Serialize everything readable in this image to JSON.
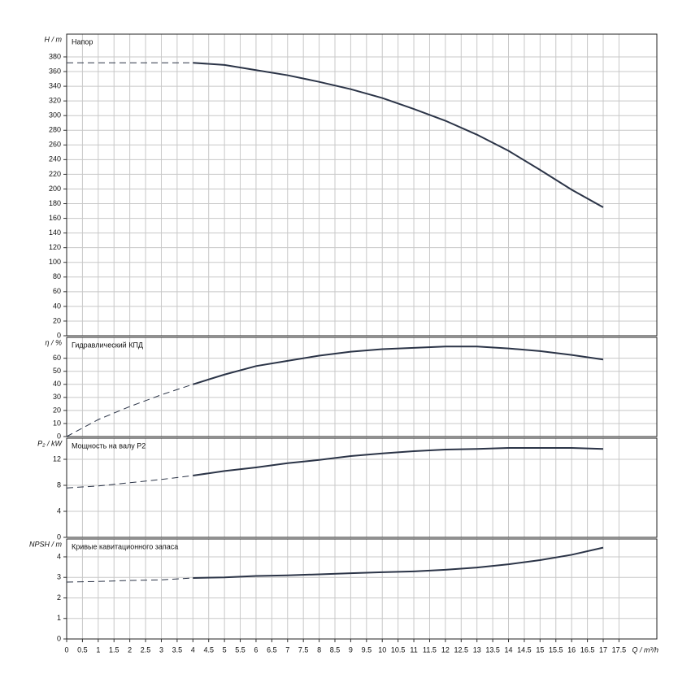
{
  "chart_data": [
    {
      "type": "line",
      "title": "Напор",
      "ylabel": "H / m",
      "grid": true,
      "xlim": [
        0,
        18.7
      ],
      "ylim": [
        0,
        411
      ],
      "yticks": [
        0,
        20,
        40,
        60,
        80,
        100,
        120,
        140,
        160,
        180,
        200,
        220,
        240,
        260,
        280,
        300,
        320,
        340,
        360,
        380
      ],
      "series": [
        {
          "style": "dashed",
          "color": "#2b3447",
          "x": [
            0,
            1,
            2,
            3,
            4
          ],
          "values": [
            372,
            372,
            372,
            372,
            372
          ]
        },
        {
          "style": "solid",
          "color": "#2b3447",
          "x": [
            4,
            5,
            6,
            7,
            8,
            9,
            10,
            11,
            12,
            13,
            14,
            15,
            16,
            17
          ],
          "values": [
            372,
            369,
            362,
            355,
            346,
            336,
            324,
            309,
            293,
            274,
            252,
            226,
            199,
            175
          ]
        }
      ]
    },
    {
      "type": "line",
      "title": "Гидравлический КПД",
      "ylabel": "η / %",
      "grid": true,
      "xlim": [
        0,
        18.7
      ],
      "ylim": [
        0,
        76
      ],
      "yticks": [
        0,
        10,
        20,
        30,
        40,
        50,
        60
      ],
      "series": [
        {
          "style": "dashed",
          "color": "#2b3447",
          "x": [
            0,
            1,
            2,
            3,
            4
          ],
          "values": [
            0,
            13,
            23,
            32,
            40
          ]
        },
        {
          "style": "solid",
          "color": "#2b3447",
          "x": [
            4,
            5,
            6,
            7,
            8,
            9,
            10,
            11,
            12,
            13,
            14,
            15,
            16,
            17
          ],
          "values": [
            40,
            47.5,
            54,
            58,
            62,
            65,
            67,
            68,
            69,
            69,
            67.5,
            65.5,
            62.5,
            59
          ]
        }
      ]
    },
    {
      "type": "line",
      "title": "Мощность на валу P2",
      "ylabel": "P₂ / kW",
      "grid": true,
      "xlim": [
        0,
        18.7
      ],
      "ylim": [
        0,
        15.25
      ],
      "yticks": [
        0,
        4,
        8,
        12
      ],
      "series": [
        {
          "style": "dashed",
          "color": "#2b3447",
          "x": [
            0,
            1,
            2,
            3,
            4
          ],
          "values": [
            7.6,
            7.9,
            8.4,
            8.9,
            9.5
          ]
        },
        {
          "style": "solid",
          "color": "#2b3447",
          "x": [
            4,
            5,
            6,
            7,
            8,
            9,
            10,
            11,
            12,
            13,
            14,
            15,
            16,
            17
          ],
          "values": [
            9.5,
            10.2,
            10.75,
            11.4,
            11.9,
            12.5,
            12.9,
            13.25,
            13.5,
            13.6,
            13.75,
            13.75,
            13.75,
            13.6
          ]
        }
      ]
    },
    {
      "type": "line",
      "title": "Кривые кавитационного запаса",
      "ylabel": "NPSH / m",
      "xlabel": "Q / m³/h",
      "grid": true,
      "xlim": [
        0,
        18.7
      ],
      "ylim": [
        0,
        4.87
      ],
      "yticks": [
        0,
        1,
        2,
        3,
        4
      ],
      "xticks": [
        0,
        0.5,
        1,
        1.5,
        2,
        2.5,
        3,
        3.5,
        4,
        4.5,
        5,
        5.5,
        6,
        6.5,
        7,
        7.5,
        8,
        8.5,
        9,
        9.5,
        10,
        10.5,
        11,
        11.5,
        12,
        12.5,
        13,
        13.5,
        14,
        14.5,
        15,
        15.5,
        16,
        16.5,
        17,
        17.5
      ],
      "series": [
        {
          "style": "dashed",
          "color": "#2b3447",
          "x": [
            0,
            1,
            2,
            3,
            4
          ],
          "values": [
            2.77,
            2.8,
            2.85,
            2.88,
            2.97
          ]
        },
        {
          "style": "solid",
          "color": "#2b3447",
          "x": [
            4,
            5,
            6,
            7,
            8,
            9,
            10,
            11,
            12,
            13,
            14,
            15,
            16,
            17
          ],
          "values": [
            2.97,
            3.0,
            3.07,
            3.1,
            3.15,
            3.2,
            3.25,
            3.29,
            3.37,
            3.48,
            3.64,
            3.84,
            4.1,
            4.45
          ]
        }
      ]
    }
  ]
}
